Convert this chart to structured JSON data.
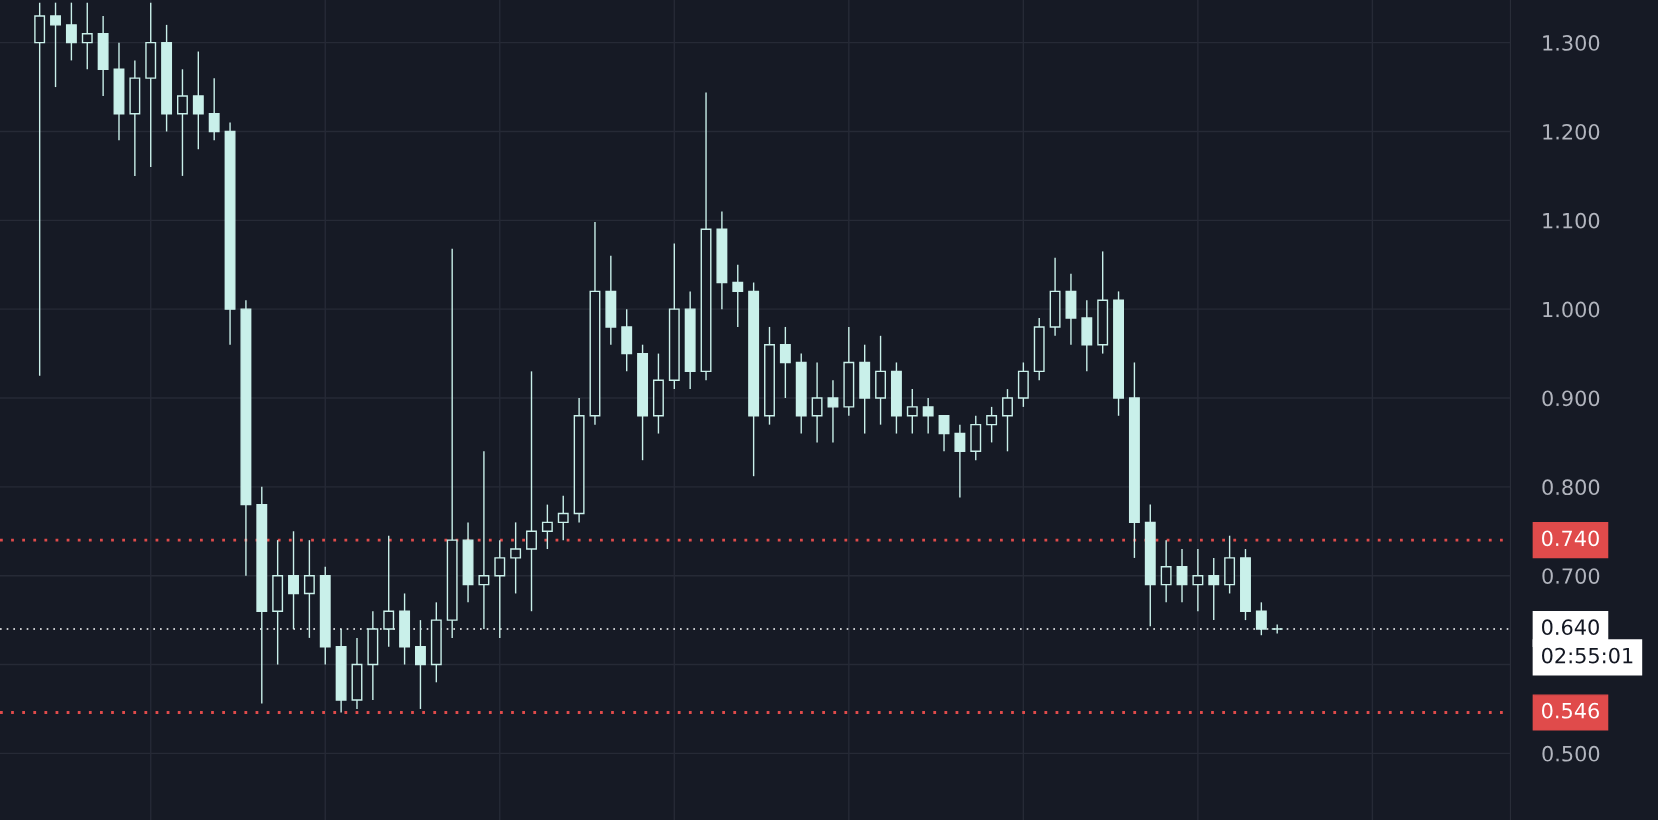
{
  "chart_data": {
    "type": "candlestick",
    "categories": [
      null,
      null,
      null,
      null,
      null,
      null,
      null,
      null,
      null,
      null,
      null,
      null,
      null,
      null,
      null,
      null,
      null,
      null,
      null,
      null,
      null,
      null,
      null,
      null,
      null,
      null,
      null,
      null,
      null,
      null,
      null,
      null,
      null,
      null,
      null,
      null,
      null,
      null,
      null,
      null,
      null,
      null,
      null,
      null,
      null,
      null,
      null,
      null,
      null,
      null,
      null,
      null,
      null,
      null,
      null,
      null,
      null,
      null,
      null,
      null,
      null,
      null,
      null,
      null,
      null,
      null,
      null,
      null,
      null,
      null,
      null,
      null,
      null,
      null,
      null,
      null,
      null,
      null,
      null,
      null,
      null,
      null,
      null,
      null,
      null,
      null,
      null,
      null,
      null,
      null,
      null,
      null,
      null
    ],
    "ohlc": [
      [
        1.3,
        1.345,
        0.925,
        1.33
      ],
      [
        1.33,
        1.345,
        1.25,
        1.32
      ],
      [
        1.32,
        1.345,
        1.28,
        1.3
      ],
      [
        1.3,
        1.345,
        1.27,
        1.31
      ],
      [
        1.31,
        1.33,
        1.24,
        1.27
      ],
      [
        1.27,
        1.3,
        1.19,
        1.22
      ],
      [
        1.22,
        1.28,
        1.15,
        1.26
      ],
      [
        1.26,
        1.345,
        1.16,
        1.3
      ],
      [
        1.3,
        1.32,
        1.2,
        1.22
      ],
      [
        1.22,
        1.27,
        1.15,
        1.24
      ],
      [
        1.24,
        1.29,
        1.18,
        1.22
      ],
      [
        1.22,
        1.26,
        1.19,
        1.2
      ],
      [
        1.2,
        1.21,
        0.96,
        1.0
      ],
      [
        1.0,
        1.01,
        0.7,
        0.78
      ],
      [
        0.78,
        0.8,
        0.556,
        0.66
      ],
      [
        0.66,
        0.74,
        0.6,
        0.7
      ],
      [
        0.7,
        0.75,
        0.64,
        0.68
      ],
      [
        0.68,
        0.74,
        0.63,
        0.7
      ],
      [
        0.7,
        0.71,
        0.6,
        0.62
      ],
      [
        0.62,
        0.64,
        0.546,
        0.56
      ],
      [
        0.56,
        0.63,
        0.55,
        0.6
      ],
      [
        0.6,
        0.66,
        0.56,
        0.64
      ],
      [
        0.64,
        0.745,
        0.62,
        0.66
      ],
      [
        0.66,
        0.68,
        0.6,
        0.62
      ],
      [
        0.62,
        0.65,
        0.55,
        0.6
      ],
      [
        0.6,
        0.67,
        0.58,
        0.65
      ],
      [
        0.65,
        1.068,
        0.63,
        0.74
      ],
      [
        0.74,
        0.76,
        0.67,
        0.69
      ],
      [
        0.69,
        0.84,
        0.64,
        0.7
      ],
      [
        0.7,
        0.74,
        0.63,
        0.72
      ],
      [
        0.72,
        0.76,
        0.68,
        0.73
      ],
      [
        0.73,
        0.93,
        0.66,
        0.75
      ],
      [
        0.75,
        0.78,
        0.73,
        0.76
      ],
      [
        0.76,
        0.79,
        0.74,
        0.77
      ],
      [
        0.77,
        0.9,
        0.76,
        0.88
      ],
      [
        0.88,
        1.098,
        0.87,
        1.02
      ],
      [
        1.02,
        1.06,
        0.96,
        0.98
      ],
      [
        0.98,
        1.0,
        0.93,
        0.95
      ],
      [
        0.95,
        0.96,
        0.83,
        0.88
      ],
      [
        0.88,
        0.95,
        0.86,
        0.92
      ],
      [
        0.92,
        1.074,
        0.91,
        1.0
      ],
      [
        1.0,
        1.02,
        0.91,
        0.93
      ],
      [
        0.93,
        1.244,
        0.92,
        1.09
      ],
      [
        1.09,
        1.11,
        1.0,
        1.03
      ],
      [
        1.03,
        1.05,
        0.98,
        1.02
      ],
      [
        1.02,
        1.03,
        0.812,
        0.88
      ],
      [
        0.88,
        0.98,
        0.87,
        0.96
      ],
      [
        0.96,
        0.98,
        0.9,
        0.94
      ],
      [
        0.94,
        0.95,
        0.86,
        0.88
      ],
      [
        0.88,
        0.94,
        0.85,
        0.9
      ],
      [
        0.9,
        0.92,
        0.85,
        0.89
      ],
      [
        0.89,
        0.98,
        0.88,
        0.94
      ],
      [
        0.94,
        0.96,
        0.86,
        0.9
      ],
      [
        0.9,
        0.97,
        0.87,
        0.93
      ],
      [
        0.93,
        0.94,
        0.86,
        0.88
      ],
      [
        0.88,
        0.91,
        0.86,
        0.89
      ],
      [
        0.89,
        0.9,
        0.86,
        0.88
      ],
      [
        0.88,
        0.88,
        0.84,
        0.86
      ],
      [
        0.86,
        0.87,
        0.788,
        0.84
      ],
      [
        0.84,
        0.88,
        0.83,
        0.87
      ],
      [
        0.87,
        0.89,
        0.85,
        0.88
      ],
      [
        0.88,
        0.91,
        0.84,
        0.9
      ],
      [
        0.9,
        0.94,
        0.89,
        0.93
      ],
      [
        0.93,
        0.99,
        0.92,
        0.98
      ],
      [
        0.98,
        1.058,
        0.97,
        1.02
      ],
      [
        1.02,
        1.04,
        0.96,
        0.99
      ],
      [
        0.99,
        1.01,
        0.93,
        0.96
      ],
      [
        0.96,
        1.065,
        0.95,
        1.01
      ],
      [
        1.01,
        1.02,
        0.88,
        0.9
      ],
      [
        0.9,
        0.94,
        0.72,
        0.76
      ],
      [
        0.76,
        0.78,
        0.643,
        0.69
      ],
      [
        0.69,
        0.74,
        0.67,
        0.71
      ],
      [
        0.71,
        0.73,
        0.67,
        0.69
      ],
      [
        0.69,
        0.73,
        0.66,
        0.7
      ],
      [
        0.7,
        0.72,
        0.65,
        0.69
      ],
      [
        0.69,
        0.745,
        0.68,
        0.72
      ],
      [
        0.72,
        0.73,
        0.65,
        0.66
      ],
      [
        0.66,
        0.67,
        0.633,
        0.64
      ],
      [
        0.64,
        0.645,
        0.635,
        0.64
      ],
      null,
      null,
      null,
      null,
      null,
      null,
      null,
      null,
      null,
      null,
      null,
      null,
      null,
      null
    ],
    "color": "#c9f0ea",
    "ylim": [
      0.425,
      1.348
    ],
    "yticks": [
      {
        "value": 0.5,
        "label": "0.500"
      },
      {
        "value": 0.6,
        "label": null
      },
      {
        "value": 0.7,
        "label": "0.700"
      },
      {
        "value": 0.8,
        "label": "0.800"
      },
      {
        "value": 0.9,
        "label": "0.900"
      },
      {
        "value": 1.0,
        "label": "1.000"
      },
      {
        "value": 1.1,
        "label": "1.100"
      },
      {
        "value": 1.2,
        "label": "1.200"
      },
      {
        "value": 1.3,
        "label": "1.300"
      }
    ],
    "grid": true,
    "ref_lines": [
      {
        "axis": "y",
        "value": 0.74,
        "label": "0.740",
        "color": "#e04b4b",
        "line_style": "dotted"
      },
      {
        "axis": "y",
        "value": 0.64,
        "label": "0.640",
        "color": "#ffffff",
        "line_style": "dotted"
      },
      {
        "axis": "y",
        "value": 0.546,
        "label": "0.546",
        "color": "#e04b4b",
        "line_style": "dotted"
      }
    ],
    "annotations": [
      "02:55:01"
    ]
  }
}
